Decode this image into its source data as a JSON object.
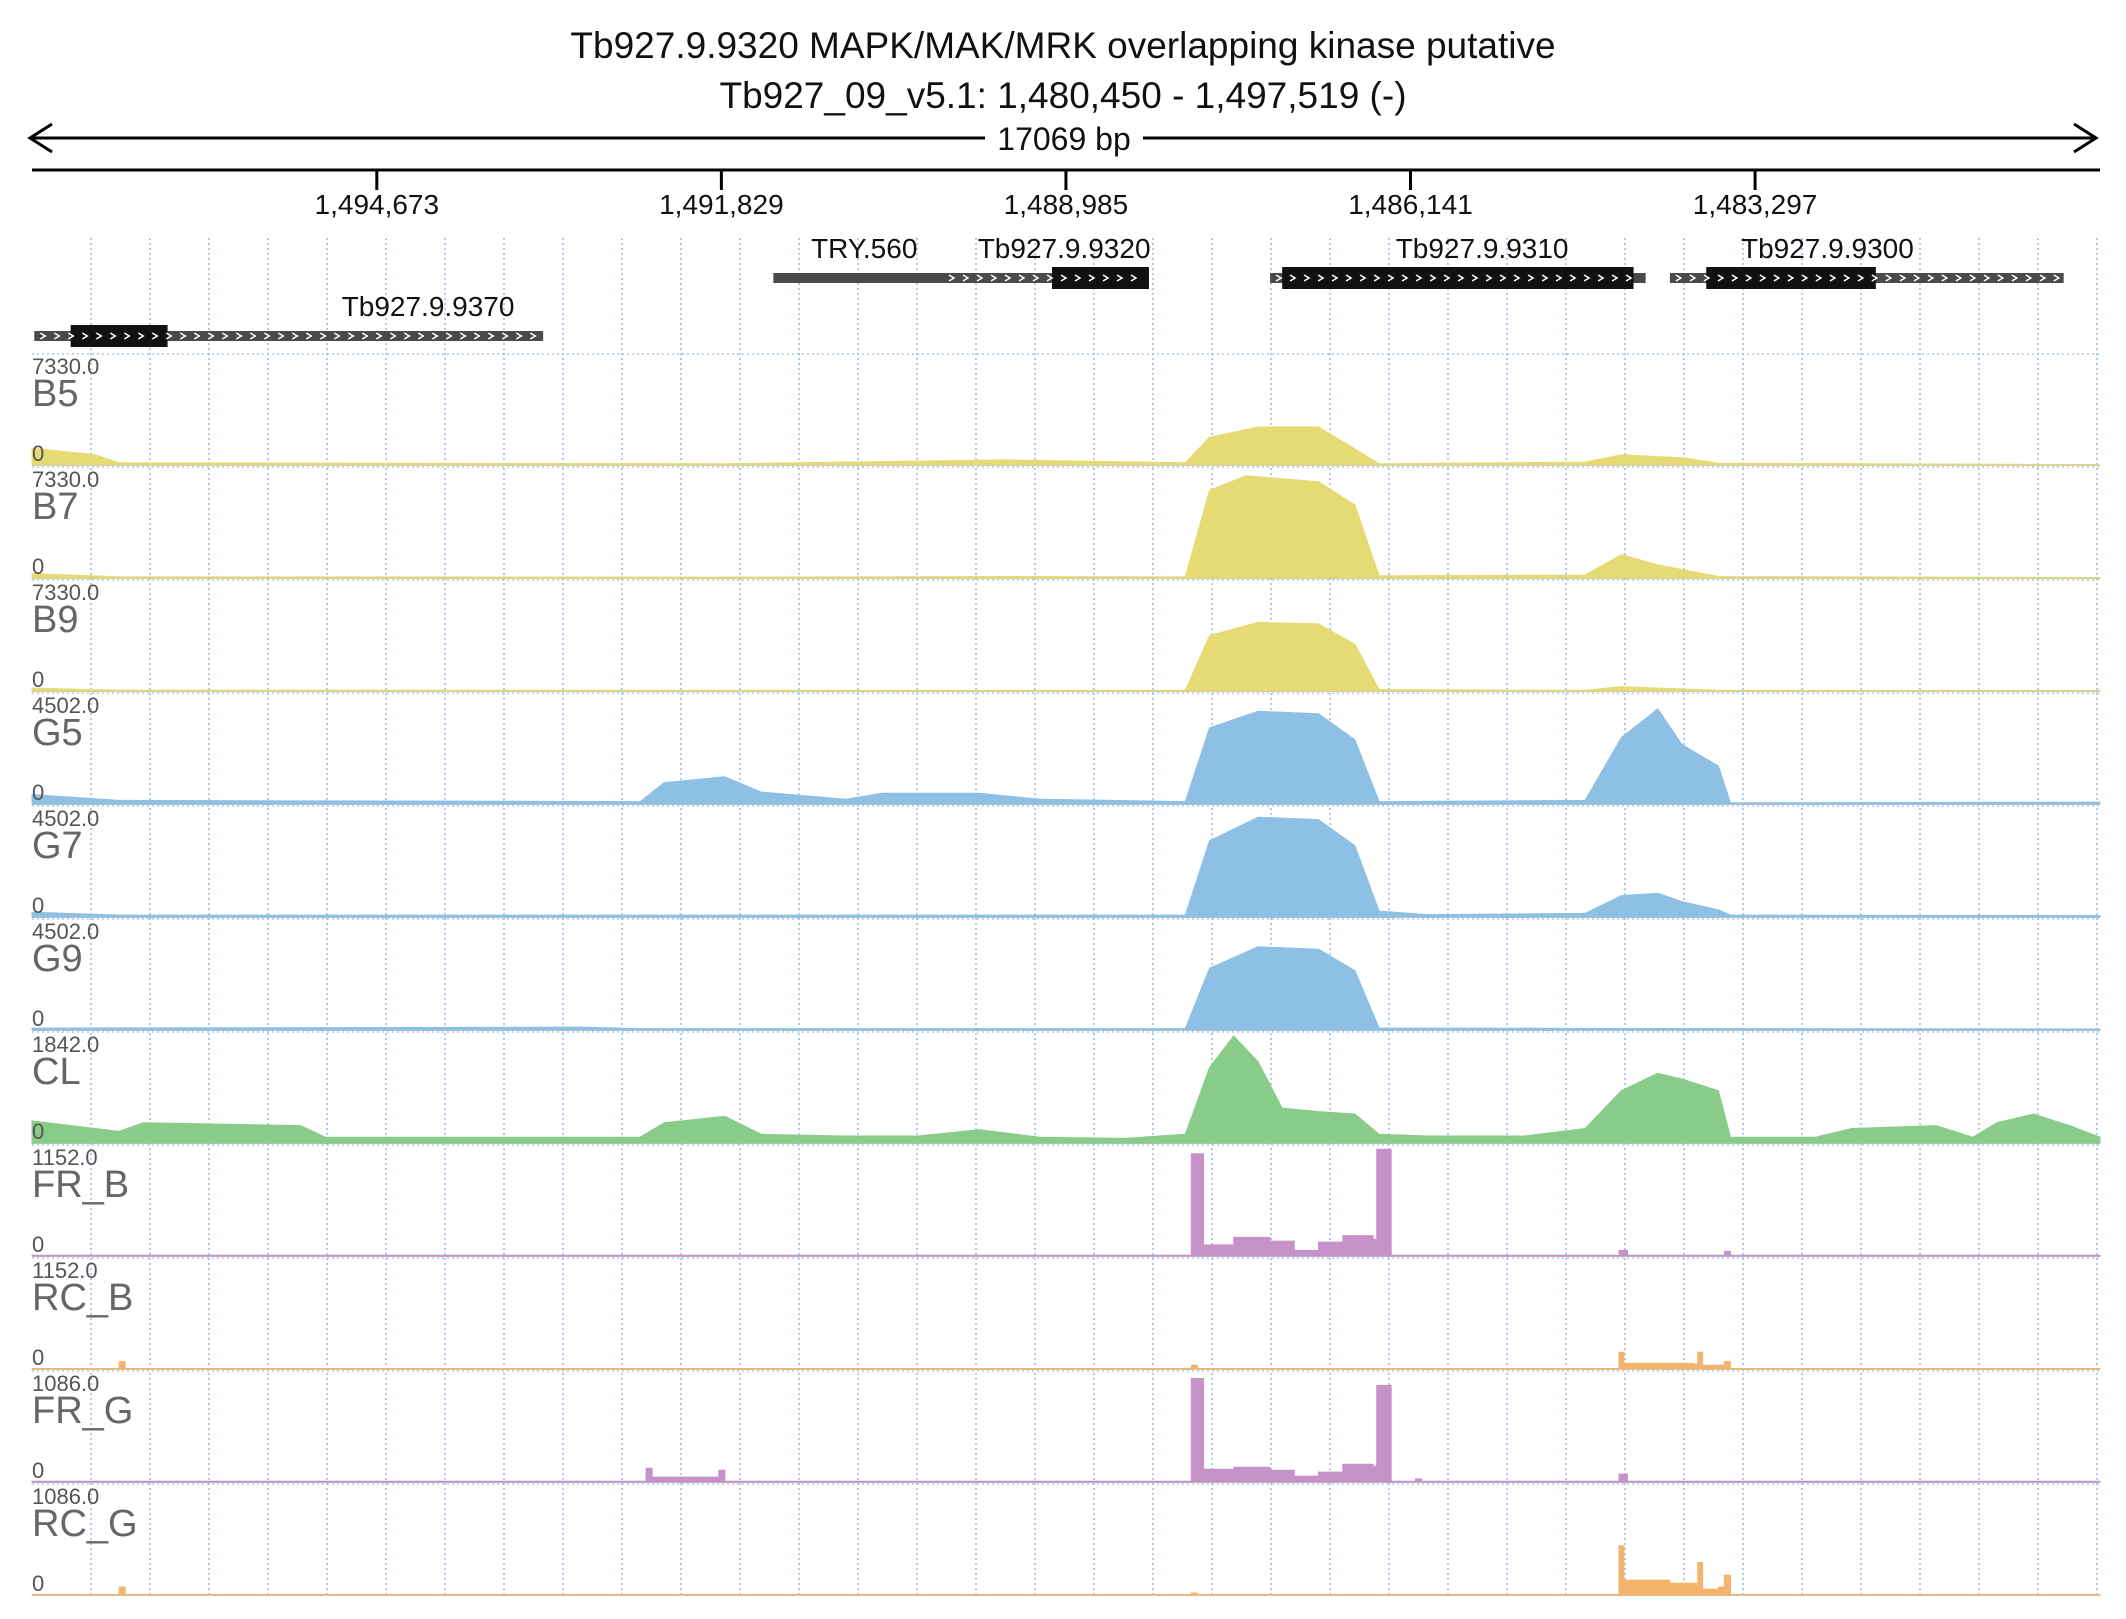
{
  "header": {
    "gene_title": "Tb927.9.9320  MAPK/MAK/MRK overlapping kinase  putative",
    "locus": "Tb927_09_v5.1: 1,480,450 - 1,497,519 (-)",
    "span_label": "17069 bp"
  },
  "chart_data": {
    "type": "area",
    "title": "Tb927.9.9320  MAPK/MAK/MRK overlapping kinase  putative",
    "subtitle": "Tb927_09_v5.1: 1,480,450 - 1,497,519 (-)",
    "region": {
      "chrom": "Tb927_09_v5.1",
      "start": 1480450,
      "end": 1497519,
      "strand": "-",
      "span_label": "17069 bp"
    },
    "x_axis": {
      "reversed": true,
      "ticks": [
        1494673,
        1491829,
        1488985,
        1486141,
        1483297
      ],
      "tick_labels": [
        "1,494,673",
        "1,491,829",
        "1,488,985",
        "1,486,141",
        "1,483,297"
      ]
    },
    "grid": true,
    "genes": [
      {
        "name": "Tb927.9.9370",
        "start": 1493300,
        "end": 1497500,
        "thick_start": 1496400,
        "thick_end": 1497200,
        "row": 1,
        "label_pos": 1494250
      },
      {
        "name": "TRY.560",
        "start": 1489950,
        "end": 1491400,
        "row": 0,
        "solid": true,
        "label_pos": 1490650
      },
      {
        "name": "Tb927.9.9320",
        "start": 1488300,
        "end": 1490000,
        "thick_start": 1488300,
        "thick_end": 1489100,
        "row": 0,
        "label_pos": 1489000
      },
      {
        "name": "Tb927.9.9310",
        "start": 1484200,
        "end": 1487300,
        "thick_start": 1484300,
        "thick_end": 1487200,
        "row": 0,
        "label_pos": 1485550
      },
      {
        "name": "Tb927.9.9300",
        "start": 1480750,
        "end": 1484000,
        "thick_start": 1482300,
        "thick_end": 1483700,
        "row": 0,
        "label_pos": 1482700
      }
    ],
    "tracks": [
      {
        "name": "B5",
        "max_label": "7330.0",
        "min_label": "0",
        "ymax": 7330,
        "color": "#e5da74",
        "style": "area",
        "points": [
          [
            1497519,
            1150
          ],
          [
            1497000,
            700
          ],
          [
            1496800,
            150
          ],
          [
            1491800,
            80
          ],
          [
            1489500,
            350
          ],
          [
            1488000,
            150
          ],
          [
            1487800,
            1900
          ],
          [
            1487400,
            2600
          ],
          [
            1486900,
            2600
          ],
          [
            1486600,
            1100
          ],
          [
            1486400,
            80
          ],
          [
            1484700,
            200
          ],
          [
            1484400,
            700
          ],
          [
            1483900,
            500
          ],
          [
            1483600,
            120
          ],
          [
            1480450,
            30
          ]
        ]
      },
      {
        "name": "B7",
        "max_label": "7330.0",
        "min_label": "0",
        "ymax": 7330,
        "color": "#e5da74",
        "style": "area",
        "points": [
          [
            1497519,
            300
          ],
          [
            1496800,
            80
          ],
          [
            1491800,
            60
          ],
          [
            1489500,
            100
          ],
          [
            1488000,
            80
          ],
          [
            1487800,
            6000
          ],
          [
            1487500,
            7000
          ],
          [
            1486900,
            6600
          ],
          [
            1486600,
            5000
          ],
          [
            1486400,
            150
          ],
          [
            1484700,
            200
          ],
          [
            1484400,
            1600
          ],
          [
            1484100,
            900
          ],
          [
            1483600,
            100
          ],
          [
            1480450,
            30
          ]
        ]
      },
      {
        "name": "B9",
        "max_label": "7330.0",
        "min_label": "0",
        "ymax": 7330,
        "color": "#e5da74",
        "style": "area",
        "points": [
          [
            1497519,
            200
          ],
          [
            1496800,
            60
          ],
          [
            1488000,
            40
          ],
          [
            1487800,
            3800
          ],
          [
            1487400,
            4700
          ],
          [
            1486900,
            4600
          ],
          [
            1486600,
            3200
          ],
          [
            1486400,
            100
          ],
          [
            1484700,
            50
          ],
          [
            1484400,
            300
          ],
          [
            1483600,
            50
          ],
          [
            1480450,
            20
          ]
        ]
      },
      {
        "name": "G5",
        "max_label": "4502.0",
        "min_label": "0",
        "ymax": 4502,
        "color": "#8dc0e4",
        "style": "area",
        "points": [
          [
            1497519,
            400
          ],
          [
            1496800,
            150
          ],
          [
            1492500,
            100
          ],
          [
            1492300,
            900
          ],
          [
            1491800,
            1150
          ],
          [
            1491500,
            500
          ],
          [
            1490800,
            200
          ],
          [
            1490500,
            450
          ],
          [
            1489700,
            450
          ],
          [
            1489200,
            200
          ],
          [
            1488000,
            100
          ],
          [
            1487800,
            3200
          ],
          [
            1487400,
            3900
          ],
          [
            1486900,
            3800
          ],
          [
            1486600,
            2700
          ],
          [
            1486400,
            100
          ],
          [
            1484700,
            150
          ],
          [
            1484400,
            2800
          ],
          [
            1484100,
            4000
          ],
          [
            1483900,
            2500
          ],
          [
            1483600,
            1600
          ],
          [
            1483500,
            50
          ],
          [
            1480450,
            80
          ]
        ]
      },
      {
        "name": "G7",
        "max_label": "4502.0",
        "min_label": "0",
        "ymax": 4502,
        "color": "#8dc0e4",
        "style": "area",
        "points": [
          [
            1497519,
            200
          ],
          [
            1496800,
            80
          ],
          [
            1488000,
            80
          ],
          [
            1487800,
            3200
          ],
          [
            1487400,
            4200
          ],
          [
            1486900,
            4100
          ],
          [
            1486600,
            3000
          ],
          [
            1486400,
            250
          ],
          [
            1486000,
            100
          ],
          [
            1484700,
            150
          ],
          [
            1484400,
            900
          ],
          [
            1484100,
            1000
          ],
          [
            1483900,
            650
          ],
          [
            1483600,
            300
          ],
          [
            1483500,
            80
          ],
          [
            1480450,
            60
          ]
        ]
      },
      {
        "name": "G9",
        "max_label": "4502.0",
        "min_label": "0",
        "ymax": 4502,
        "color": "#8dc0e4",
        "style": "area",
        "points": [
          [
            1497519,
            80
          ],
          [
            1493000,
            120
          ],
          [
            1492500,
            60
          ],
          [
            1488000,
            60
          ],
          [
            1487800,
            2600
          ],
          [
            1487400,
            3500
          ],
          [
            1486900,
            3400
          ],
          [
            1486600,
            2500
          ],
          [
            1486400,
            80
          ],
          [
            1480450,
            40
          ]
        ]
      },
      {
        "name": "CL",
        "max_label": "1842.0",
        "min_label": "0",
        "ymax": 1842,
        "color": "#89cc8a",
        "style": "area",
        "points": [
          [
            1497519,
            380
          ],
          [
            1496800,
            200
          ],
          [
            1496600,
            350
          ],
          [
            1495300,
            300
          ],
          [
            1495100,
            100
          ],
          [
            1492500,
            100
          ],
          [
            1492300,
            350
          ],
          [
            1491800,
            460
          ],
          [
            1491500,
            150
          ],
          [
            1490800,
            120
          ],
          [
            1490200,
            120
          ],
          [
            1489700,
            230
          ],
          [
            1489200,
            100
          ],
          [
            1488500,
            80
          ],
          [
            1488000,
            150
          ],
          [
            1487800,
            1300
          ],
          [
            1487600,
            1850
          ],
          [
            1487400,
            1400
          ],
          [
            1487200,
            600
          ],
          [
            1486900,
            540
          ],
          [
            1486600,
            500
          ],
          [
            1486400,
            150
          ],
          [
            1486000,
            120
          ],
          [
            1485200,
            120
          ],
          [
            1484700,
            250
          ],
          [
            1484400,
            900
          ],
          [
            1484100,
            1200
          ],
          [
            1483900,
            1100
          ],
          [
            1483600,
            900
          ],
          [
            1483500,
            100
          ],
          [
            1482800,
            100
          ],
          [
            1482500,
            250
          ],
          [
            1481800,
            300
          ],
          [
            1481500,
            100
          ],
          [
            1481300,
            350
          ],
          [
            1481000,
            500
          ],
          [
            1480700,
            300
          ],
          [
            1480450,
            100
          ]
        ]
      },
      {
        "name": "FR_B",
        "max_label": "1152.0",
        "min_label": "0",
        "ymax": 1152,
        "color": "#c792ca",
        "style": "bar",
        "points": [
          [
            1497519,
            8
          ],
          [
            1497000,
            8
          ],
          [
            1488000,
            8
          ],
          [
            1487950,
            1100
          ],
          [
            1487850,
            120
          ],
          [
            1487600,
            200
          ],
          [
            1487300,
            160
          ],
          [
            1487100,
            60
          ],
          [
            1486900,
            150
          ],
          [
            1486700,
            220
          ],
          [
            1486450,
            180
          ],
          [
            1486420,
            1150
          ],
          [
            1486300,
            8
          ],
          [
            1484450,
            8
          ],
          [
            1484420,
            60
          ],
          [
            1484350,
            8
          ],
          [
            1483600,
            8
          ],
          [
            1483550,
            50
          ],
          [
            1483500,
            8
          ],
          [
            1480450,
            8
          ]
        ]
      },
      {
        "name": "RC_B",
        "max_label": "1152.0",
        "min_label": "0",
        "ymax": 1152,
        "color": "#f5b46b",
        "style": "bar",
        "points": [
          [
            1497519,
            5
          ],
          [
            1496850,
            5
          ],
          [
            1496800,
            80
          ],
          [
            1496750,
            5
          ],
          [
            1488000,
            5
          ],
          [
            1487950,
            40
          ],
          [
            1487900,
            5
          ],
          [
            1484450,
            5
          ],
          [
            1484420,
            180
          ],
          [
            1484380,
            60
          ],
          [
            1484000,
            60
          ],
          [
            1483800,
            50
          ],
          [
            1483770,
            180
          ],
          [
            1483730,
            40
          ],
          [
            1483580,
            40
          ],
          [
            1483550,
            80
          ],
          [
            1483500,
            5
          ],
          [
            1480450,
            5
          ]
        ]
      },
      {
        "name": "FR_G",
        "max_label": "1086.0",
        "min_label": "0",
        "ymax": 1086,
        "color": "#c792ca",
        "style": "bar",
        "points": [
          [
            1497519,
            8
          ],
          [
            1492500,
            8
          ],
          [
            1492450,
            140
          ],
          [
            1492400,
            50
          ],
          [
            1491950,
            50
          ],
          [
            1491850,
            120
          ],
          [
            1491800,
            8
          ],
          [
            1488000,
            8
          ],
          [
            1487950,
            1050
          ],
          [
            1487850,
            130
          ],
          [
            1487600,
            150
          ],
          [
            1487300,
            120
          ],
          [
            1487100,
            60
          ],
          [
            1486900,
            100
          ],
          [
            1486700,
            180
          ],
          [
            1486450,
            160
          ],
          [
            1486420,
            980
          ],
          [
            1486300,
            8
          ],
          [
            1486100,
            30
          ],
          [
            1486050,
            8
          ],
          [
            1484450,
            8
          ],
          [
            1484420,
            80
          ],
          [
            1484350,
            8
          ],
          [
            1480450,
            8
          ]
        ]
      },
      {
        "name": "RC_G",
        "max_label": "1086.0",
        "min_label": "0",
        "ymax": 1086,
        "color": "#f5b46b",
        "style": "bar",
        "points": [
          [
            1497519,
            5
          ],
          [
            1496850,
            5
          ],
          [
            1496800,
            80
          ],
          [
            1496750,
            5
          ],
          [
            1488000,
            5
          ],
          [
            1487950,
            20
          ],
          [
            1487900,
            5
          ],
          [
            1484450,
            5
          ],
          [
            1484420,
            500
          ],
          [
            1484380,
            150
          ],
          [
            1484000,
            120
          ],
          [
            1483800,
            120
          ],
          [
            1483770,
            330
          ],
          [
            1483730,
            60
          ],
          [
            1483600,
            80
          ],
          [
            1483550,
            200
          ],
          [
            1483500,
            5
          ],
          [
            1480450,
            5
          ]
        ]
      }
    ]
  }
}
